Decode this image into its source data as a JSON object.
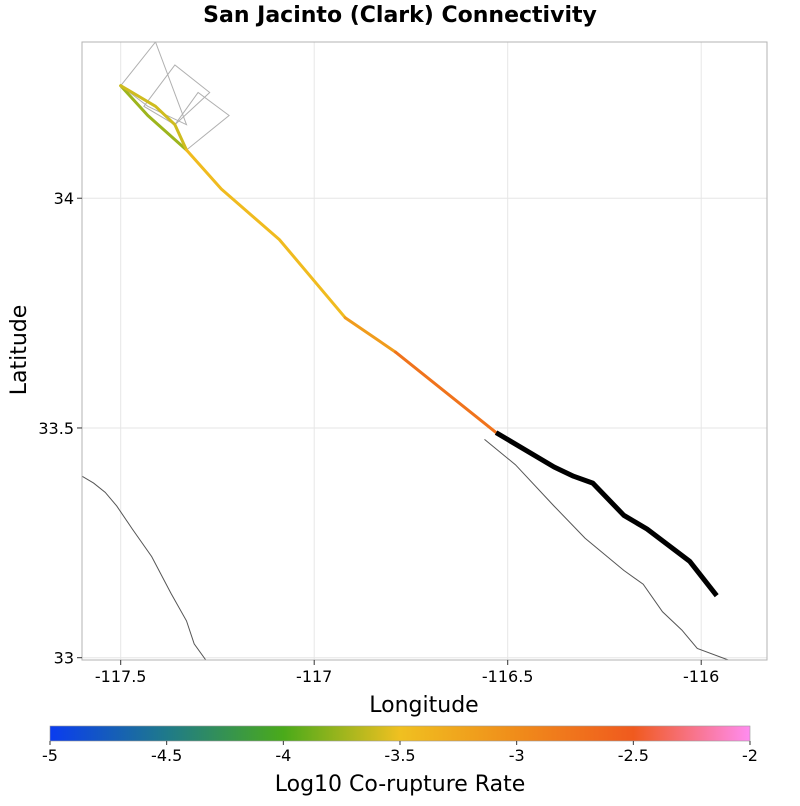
{
  "chart_data": {
    "type": "map",
    "title": "San Jacinto (Clark) Connectivity",
    "xlabel": "Longitude",
    "ylabel": "Latitude",
    "xlim": [
      -117.6,
      -115.83
    ],
    "ylim": [
      32.995,
      34.34
    ],
    "x_ticks": [
      -117.5,
      -117,
      -116.5,
      -116
    ],
    "x_tick_labels": [
      "-117.5",
      "-117",
      "-116.5",
      "-116"
    ],
    "y_ticks": [
      33,
      33.5,
      34
    ],
    "y_tick_labels": [
      "33",
      "33.5",
      "34"
    ],
    "grid": true,
    "colorbar": {
      "label": "Log10 Co-rupture Rate",
      "min": -5,
      "max": -2,
      "ticks": [
        -5,
        -4.5,
        -4,
        -3.5,
        -3,
        -2.5,
        -2
      ],
      "tick_labels": [
        "-5",
        "-4.5",
        "-4",
        "-3.5",
        "-3",
        "-2.5",
        "-2"
      ],
      "stops": [
        {
          "v": -5,
          "color": "#0a3cf0"
        },
        {
          "v": -4.5,
          "color": "#1f7a8a"
        },
        {
          "v": -4,
          "color": "#4aaa1a"
        },
        {
          "v": -3.5,
          "color": "#f0c020"
        },
        {
          "v": -3,
          "color": "#f08c1a"
        },
        {
          "v": -2.5,
          "color": "#f05a1e"
        },
        {
          "v": -2,
          "color": "#ff8cf0"
        }
      ]
    },
    "highlight_section": {
      "name": "San Jacinto (Clark)",
      "color": "#000000",
      "points": [
        [
          -116.53,
          33.49
        ],
        [
          -116.38,
          33.415
        ],
        [
          -116.33,
          33.395
        ],
        [
          -116.28,
          33.38
        ],
        [
          -116.2,
          33.31
        ],
        [
          -116.14,
          33.28
        ],
        [
          -116.03,
          33.21
        ],
        [
          -115.96,
          33.135
        ]
      ]
    },
    "colored_sections": [
      {
        "value": -3.75,
        "points": [
          [
            -117.5,
            34.245
          ],
          [
            -117.43,
            34.18
          ],
          [
            -117.33,
            34.105
          ]
        ]
      },
      {
        "value": -3.6,
        "points": [
          [
            -117.5,
            34.245
          ],
          [
            -117.41,
            34.2
          ],
          [
            -117.36,
            34.16
          ],
          [
            -117.33,
            34.105
          ]
        ]
      },
      {
        "value": -3.45,
        "points": [
          [
            -117.33,
            34.105
          ],
          [
            -117.24,
            34.02
          ],
          [
            -117.09,
            33.91
          ],
          [
            -116.92,
            33.74
          ]
        ]
      },
      {
        "value": -3.15,
        "points": [
          [
            -116.92,
            33.74
          ],
          [
            -116.79,
            33.665
          ]
        ]
      },
      {
        "value": -2.75,
        "points": [
          [
            -116.79,
            33.665
          ],
          [
            -116.53,
            33.49
          ]
        ]
      }
    ],
    "subsection_outlines": [
      [
        [
          -117.5,
          34.245
        ],
        [
          -117.41,
          34.34
        ],
        [
          -117.33,
          34.16
        ],
        [
          -117.43,
          34.2
        ]
      ],
      [
        [
          -117.44,
          34.2
        ],
        [
          -117.36,
          34.29
        ],
        [
          -117.27,
          34.23
        ],
        [
          -117.36,
          34.16
        ]
      ],
      [
        [
          -117.36,
          34.16
        ],
        [
          -117.3,
          34.23
        ],
        [
          -117.22,
          34.18
        ],
        [
          -117.33,
          34.105
        ]
      ]
    ],
    "boundary_lines": [
      [
        [
          -117.6,
          33.395
        ],
        [
          -117.57,
          33.38
        ],
        [
          -117.54,
          33.36
        ],
        [
          -117.51,
          33.33
        ],
        [
          -117.47,
          33.28
        ],
        [
          -117.42,
          33.22
        ],
        [
          -117.37,
          33.14
        ],
        [
          -117.33,
          33.08
        ],
        [
          -117.31,
          33.03
        ],
        [
          -117.28,
          32.995
        ]
      ],
      [
        [
          -116.56,
          33.475
        ],
        [
          -116.48,
          33.42
        ],
        [
          -116.38,
          33.33
        ],
        [
          -116.3,
          33.26
        ],
        [
          -116.2,
          33.19
        ],
        [
          -116.15,
          33.16
        ],
        [
          -116.1,
          33.1
        ],
        [
          -116.05,
          33.06
        ],
        [
          -116.01,
          33.02
        ],
        [
          -115.93,
          32.995
        ]
      ]
    ]
  }
}
